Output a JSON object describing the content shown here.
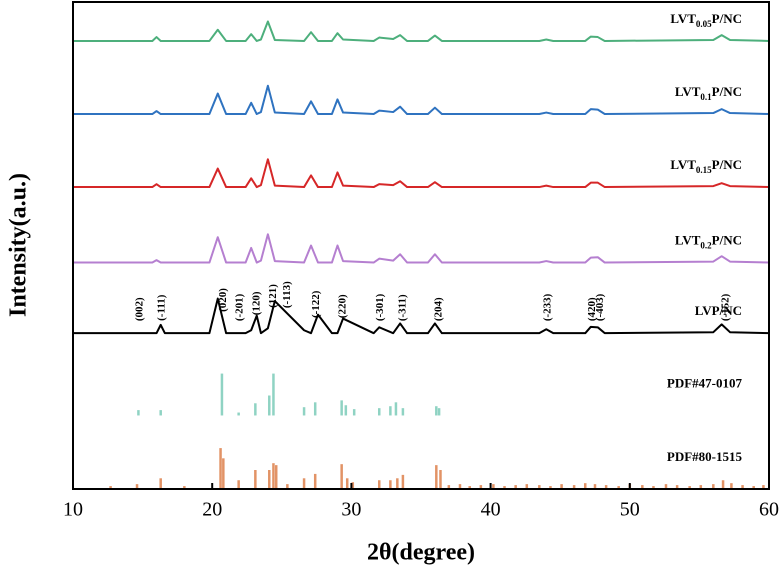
{
  "chart_data": {
    "type": "line",
    "x_label": "2θ(degree)",
    "y_label": "Intensity(a.u.)",
    "xlim": [
      10,
      60
    ],
    "xticks": [
      10,
      20,
      30,
      40,
      50,
      60
    ],
    "ylim": [
      0,
      100
    ],
    "x": [
      10,
      15.7,
      16.0,
      16.3,
      16.6,
      19.8,
      20.4,
      21.0,
      22.4,
      22.8,
      23.2,
      23.5,
      24.0,
      24.5,
      26.6,
      27.1,
      27.6,
      28.6,
      29.0,
      29.4,
      31.6,
      32.0,
      33.0,
      33.5,
      34.0,
      35.5,
      36.0,
      36.5,
      43.5,
      44.0,
      44.5,
      46.8,
      47.2,
      47.7,
      48.2,
      56.0,
      56.6,
      57.2,
      60
    ],
    "series": [
      {
        "name": "LVT0.05P/NC",
        "type": "line",
        "color": "#4daf7c",
        "values": [
          92,
          92,
          92.8,
          92,
          92,
          92,
          94.3,
          92,
          92,
          93.4,
          92,
          92.3,
          96,
          92.2,
          92,
          93.8,
          92,
          92,
          93.6,
          92.3,
          92,
          92.7,
          92.4,
          93.2,
          92,
          92,
          93.1,
          92,
          92,
          92.3,
          92,
          92,
          92.9,
          92.8,
          92,
          92.2,
          93.2,
          92.2,
          92
        ]
      },
      {
        "name": "LVT0.1P/NC",
        "type": "line",
        "color": "#2f73c0",
        "values": [
          77,
          77,
          77.6,
          77,
          77,
          77,
          81.2,
          77,
          77,
          79.3,
          77,
          77.4,
          82.8,
          77.3,
          77,
          79.6,
          77,
          77,
          80,
          77.3,
          77,
          77.7,
          77.4,
          78.5,
          77,
          77,
          78.3,
          77,
          77,
          77.3,
          77,
          77,
          78,
          77.9,
          77,
          77.2,
          78,
          77.2,
          77
        ]
      },
      {
        "name": "LVT0.15P/NC",
        "type": "line",
        "color": "#d62728",
        "values": [
          62,
          62,
          62.6,
          62,
          62,
          62,
          65.8,
          62,
          62,
          63.8,
          62,
          62.4,
          67.7,
          62.3,
          62,
          64.4,
          62,
          62,
          65,
          62.3,
          62,
          62.6,
          62.4,
          63.2,
          62,
          62,
          63,
          62,
          62,
          62.3,
          62,
          62,
          62.9,
          62.9,
          62,
          62.2,
          62.8,
          62.2,
          62
        ]
      },
      {
        "name": "LVT0.2P/NC",
        "type": "line",
        "color": "#b57fd0",
        "values": [
          46.5,
          46.5,
          47,
          46.5,
          46.5,
          46.5,
          51.7,
          46.5,
          46.5,
          49.5,
          46.5,
          46.9,
          52.3,
          46.8,
          46.5,
          50,
          46.5,
          46.5,
          50,
          46.8,
          46.5,
          47.3,
          46.9,
          48.2,
          46.5,
          46.5,
          48.2,
          46.5,
          46.5,
          46.8,
          46.5,
          46.5,
          47.5,
          47.6,
          46.5,
          46.7,
          47.8,
          46.7,
          46.5
        ]
      },
      {
        "name": "LVP/NC",
        "type": "line",
        "color": "#000000",
        "values": [
          32,
          32,
          32,
          33.7,
          32,
          32,
          39.1,
          32,
          32,
          32.6,
          35.6,
          32,
          33,
          38.6,
          32.6,
          32,
          35.8,
          32,
          32,
          35,
          32,
          33.2,
          32,
          34,
          32,
          32,
          34,
          32,
          32,
          32.8,
          32,
          32,
          33.3,
          33.2,
          32,
          32.2,
          33.8,
          32.2,
          32
        ]
      },
      {
        "name": "PDF#47-0107",
        "type": "stick",
        "color": "#8fd3c3",
        "baseline": 15.1,
        "x": [
          14.7,
          16.3,
          20.7,
          21.9,
          23.1,
          24.1,
          24.4,
          26.6,
          27.4,
          29.3,
          29.6,
          30.2,
          32.0,
          32.8,
          33.2,
          33.7,
          36.1,
          36.3
        ],
        "values": [
          16.2,
          16.2,
          23.7,
          15.7,
          17.6,
          19.2,
          23.7,
          16.8,
          17.8,
          18.2,
          17.2,
          16.4,
          16.6,
          17.0,
          17.8,
          16.6,
          17.0,
          16.6
        ]
      },
      {
        "name": "PDF#80-1515",
        "type": "stick",
        "color": "#e29366",
        "baseline": 0,
        "x": [
          12.7,
          14.6,
          16.3,
          18.0,
          20.6,
          20.8,
          21.9,
          23.1,
          24.1,
          24.4,
          24.6,
          25.4,
          26.6,
          27.4,
          29.3,
          29.7,
          30.1,
          32.0,
          32.8,
          33.3,
          33.7,
          36.1,
          36.4,
          37.0,
          37.8,
          38.5,
          39.3,
          40.2,
          41.0,
          41.8,
          42.6,
          43.5,
          44.3,
          45.1,
          46.0,
          46.8,
          47.5,
          48.3,
          49.2,
          50.0,
          50.9,
          51.7,
          52.6,
          53.4,
          54.3,
          55.1,
          56.0,
          56.7,
          57.3,
          58.1,
          58.9,
          59.6
        ],
        "values": [
          0.6,
          1.0,
          2.2,
          0.6,
          8.4,
          6.3,
          1.8,
          3.9,
          3.9,
          5.3,
          4.9,
          1.0,
          2.2,
          3.1,
          5.1,
          2.2,
          1.4,
          1.8,
          1.8,
          2.2,
          2.9,
          4.9,
          3.9,
          0.8,
          1.0,
          0.6,
          0.8,
          1.0,
          0.6,
          0.8,
          1.0,
          0.8,
          0.6,
          1.0,
          0.8,
          1.2,
          1.0,
          0.8,
          0.6,
          1.0,
          0.8,
          0.6,
          1.0,
          0.8,
          0.6,
          0.8,
          1.0,
          1.8,
          1.2,
          0.8,
          0.6,
          0.8
        ]
      }
    ],
    "annotations": [
      {
        "text": "(002)",
        "x": 14.7
      },
      {
        "text": "(-111)",
        "x": 16.3
      },
      {
        "text": "(020)",
        "x": 20.7
      },
      {
        "text": "(-201)",
        "x": 21.9
      },
      {
        "text": "(120)",
        "x": 23.1
      },
      {
        "text": "(121)",
        "x": 24.3
      },
      {
        "text": "(-113)",
        "x": 25.3
      },
      {
        "text": "(-122)",
        "x": 27.4
      },
      {
        "text": "(220)",
        "x": 29.3
      },
      {
        "text": "(-301)",
        "x": 32.0
      },
      {
        "text": "(-311)",
        "x": 33.6
      },
      {
        "text": "(204)",
        "x": 36.2
      },
      {
        "text": "(-233)",
        "x": 44.0
      },
      {
        "text": "(420)",
        "x": 47.2
      },
      {
        "text": "(-403)",
        "x": 47.8
      },
      {
        "text": "(-152)",
        "x": 56.8
      }
    ]
  }
}
